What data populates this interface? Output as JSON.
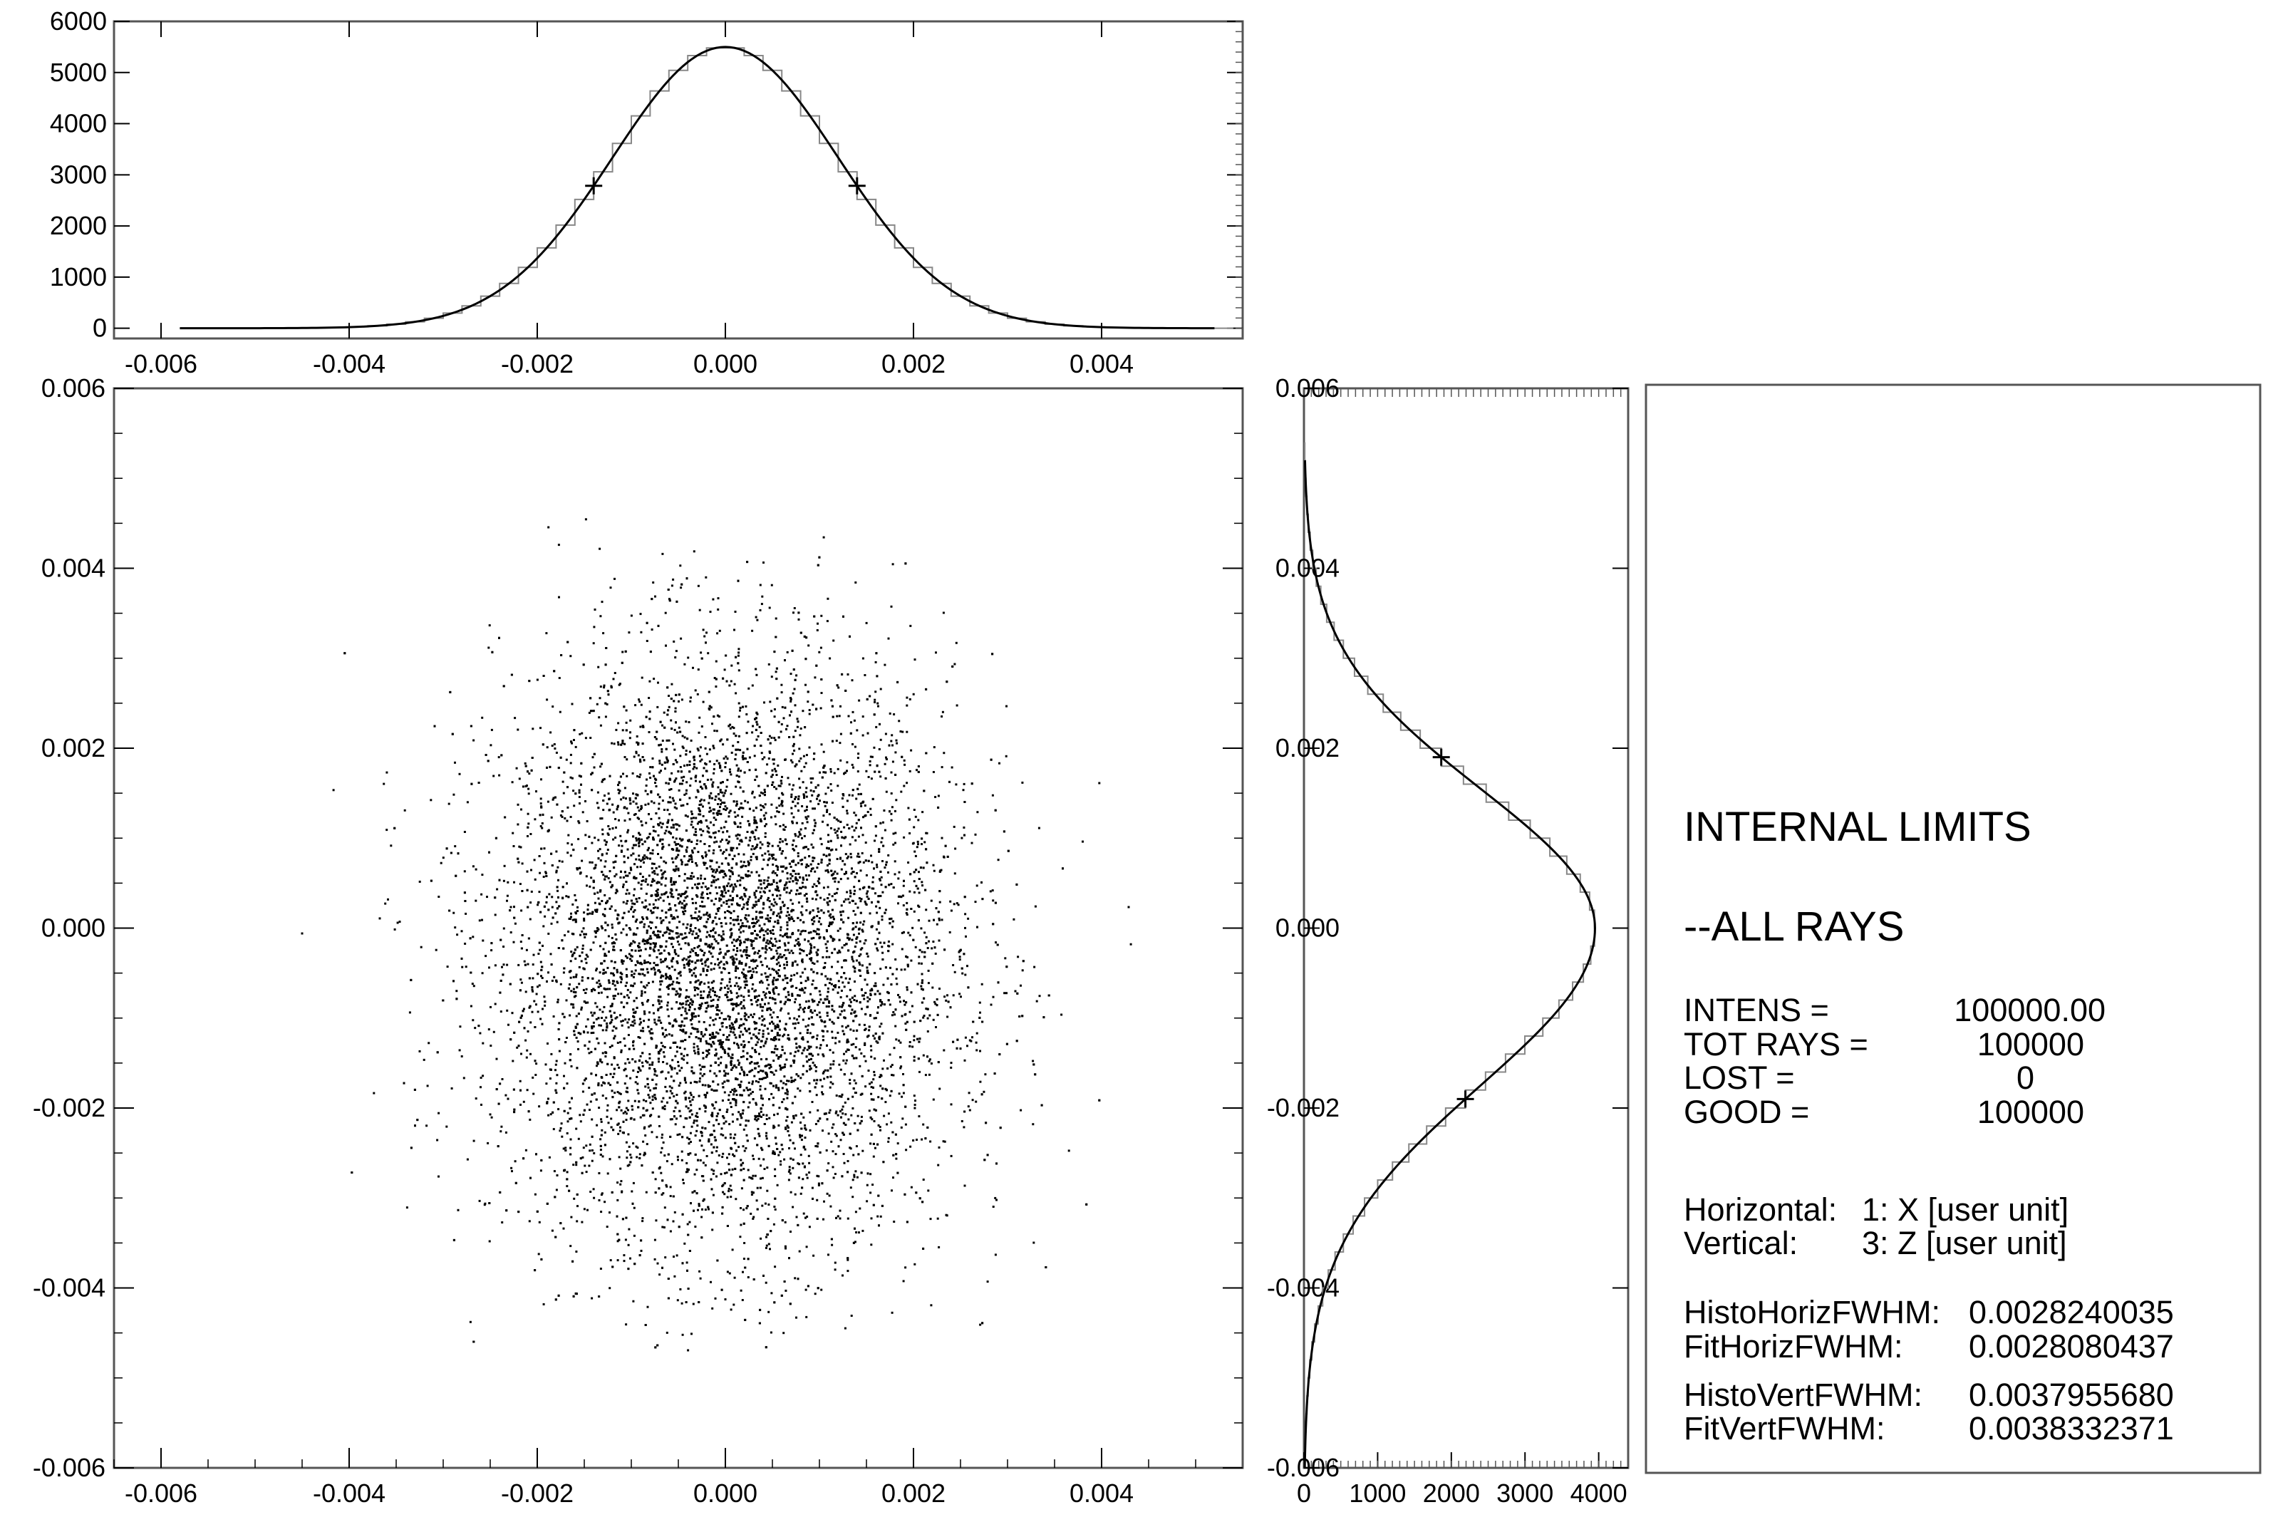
{
  "chart_data": [
    {
      "type": "area",
      "panel": "top-histogram",
      "description_source": "horizontal histogram of X with gaussian fit",
      "x": [
        -0.005,
        -0.0045,
        -0.004,
        -0.0035,
        -0.003,
        -0.0025,
        -0.002,
        -0.0015,
        -0.001,
        -0.0005,
        0.0,
        0.0005,
        0.001,
        0.0015,
        0.002,
        0.0025,
        0.003,
        0.0035,
        0.004,
        0.0045,
        0.005
      ],
      "values": [
        0,
        5,
        35,
        110,
        320,
        800,
        1650,
        2800,
        4050,
        5050,
        5500,
        5050,
        4050,
        2800,
        1650,
        800,
        320,
        110,
        35,
        5,
        0
      ],
      "xlim": [
        -0.0065,
        0.0055
      ],
      "ylim": [
        -200,
        6000
      ],
      "xticks": [
        "-0.006",
        "-0.004",
        "-0.002",
        "0.000",
        "0.002",
        "0.004"
      ],
      "yticks": [
        "0",
        "1000",
        "2000",
        "3000",
        "4000",
        "5000",
        "6000"
      ],
      "grid": false
    },
    {
      "type": "scatter",
      "panel": "main-scatter",
      "x_center": 0.0,
      "y_center": -0.0003,
      "x_sigma": 0.0012,
      "y_sigma": 0.0016,
      "x_range": [
        -0.0048,
        0.0048
      ],
      "y_range": [
        -0.0047,
        0.0047
      ],
      "xlim": [
        -0.0065,
        0.0055
      ],
      "ylim": [
        -0.006,
        0.006
      ],
      "xticks": [
        "-0.006",
        "-0.004",
        "-0.002",
        "0.000",
        "0.002",
        "0.004"
      ],
      "yticks": [
        "-0.006",
        "-0.004",
        "-0.002",
        "0.000",
        "0.002",
        "0.004",
        "0.006"
      ],
      "grid": false
    },
    {
      "type": "area",
      "panel": "right-histogram",
      "description_source": "vertical histogram of Z with gaussian fit",
      "y": [
        -0.006,
        -0.0055,
        -0.005,
        -0.0045,
        -0.004,
        -0.0035,
        -0.003,
        -0.0025,
        -0.002,
        -0.0015,
        -0.001,
        -0.0005,
        0.0,
        0.0005,
        0.001,
        0.0015,
        0.002,
        0.0025,
        0.003,
        0.0035,
        0.004,
        0.0045,
        0.005
      ],
      "values": [
        0,
        20,
        90,
        250,
        550,
        1000,
        1500,
        2000,
        2500,
        3050,
        3500,
        3800,
        3950,
        3750,
        3200,
        2500,
        1800,
        1150,
        650,
        300,
        120,
        40,
        0
      ],
      "xlim": [
        0,
        4400
      ],
      "ylim": [
        -0.006,
        0.006
      ],
      "xticks": [
        "0",
        "1000",
        "2000",
        "3000",
        "4000"
      ],
      "yticks": [
        "-0.006",
        "-0.004",
        "-0.002",
        "0.000",
        "0.002",
        "0.004",
        "0.006"
      ],
      "grid": false
    }
  ],
  "info": {
    "title": "INTERNAL LIMITS",
    "subtitle": "--ALL RAYS",
    "stats": [
      {
        "label": "INTENS  =",
        "value": "100000.00"
      },
      {
        "label": "TOT RAYS =",
        "value": "100000"
      },
      {
        "label": "LOST =",
        "value": "0"
      },
      {
        "label": "GOOD =",
        "value": "100000"
      }
    ],
    "axes": [
      {
        "label": "Horizontal:",
        "value": "1: X [user unit]"
      },
      {
        "label": "Vertical:",
        "value": "3: Z [user unit]"
      }
    ],
    "fwhm_horiz": [
      {
        "label": "HistoHorizFWHM:",
        "value": "0.0028240035"
      },
      {
        "label": "FitHorizFWHM:",
        "value": "0.0028080437"
      }
    ],
    "fwhm_vert": [
      {
        "label": "HistoVertFWHM:",
        "value": "0.0037955680"
      },
      {
        "label": "FitVertFWHM:",
        "value": "0.0038332371"
      }
    ]
  },
  "colors": {
    "ink": "#000000",
    "frame": "#555555",
    "step": "#888888"
  }
}
